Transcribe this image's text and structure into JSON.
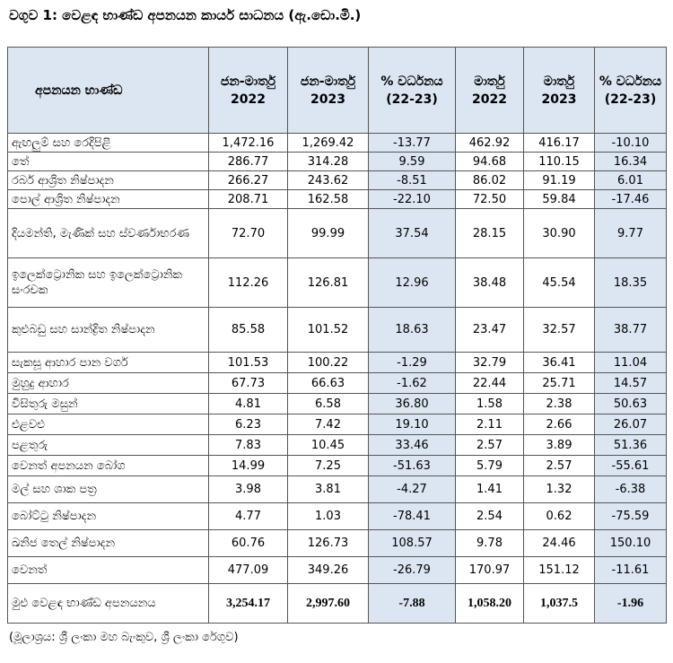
{
  "title": "වගුව 1: වෙළඳ භාණ්ඩ අපනයන කාර්ය සාධනය (ඇ.ඩො.මි.)",
  "table": {
    "header": [
      "අපනයන භාණ්ඩ",
      "ජන-මාර්තු 2022",
      "ජන-මාර්තු 2023",
      "% වර්ධනය (22-23)",
      "මාර්තු 2022",
      "මාර්තු 2023",
      "% වර්ධනය (22-23)"
    ],
    "rows": [
      [
        "ඇඟලුම් සහ රෙදිපිළි",
        "1,472.16",
        "1,269.42",
        "-13.77",
        "462.92",
        "416.17",
        "-10.10"
      ],
      [
        "තේ",
        "286.77",
        "314.28",
        "9.59",
        "94.68",
        "110.15",
        "16.34"
      ],
      [
        "රබර් ආශ්‍රිත නිෂ්පාදන",
        "266.27",
        "243.62",
        "-8.51",
        "86.02",
        "91.19",
        "6.01"
      ],
      [
        "පොල් ආශ්‍රිත නිෂ්පාදන",
        "208.71",
        "162.58",
        "-22.10",
        "72.50",
        "59.84",
        "-17.46"
      ],
      [
        "දියමන්ති, මැණික් සහ ස්වර්ණාභරණ",
        "72.70",
        "99.99",
        "37.54",
        "28.15",
        "30.90",
        "9.77"
      ],
      [
        "ඉලෙක්ට්‍රොනික සහ ඉලෙක්ට්‍රොනික සංරචක",
        "112.26",
        "126.81",
        "12.96",
        "38.48",
        "45.54",
        "18.35"
      ],
      [
        "කුළුබඩු සහ සාන්ද්‍රිත නිෂ්පාදන",
        "85.58",
        "101.52",
        "18.63",
        "23.47",
        "32.57",
        "38.77"
      ],
      [
        "සැකසූ ආහාර පාන වර්ග",
        "101.53",
        "100.22",
        "-1.29",
        "32.79",
        "36.41",
        "11.04"
      ],
      [
        "මුහුදු ආහාර",
        "67.73",
        "66.63",
        "-1.62",
        "22.44",
        "25.71",
        "14.57"
      ],
      [
        "විසිතුරු මසුන්",
        "4.81",
        "6.58",
        "36.80",
        "1.58",
        "2.38",
        "50.63"
      ],
      [
        "එළවළු",
        "6.23",
        "7.42",
        "19.10",
        "2.11",
        "2.66",
        "26.07"
      ],
      [
        "පළතුරු",
        "7.83",
        "10.45",
        "33.46",
        "2.57",
        "3.89",
        "51.36"
      ],
      [
        "වෙනත් අපනයන බෝග",
        "14.99",
        "7.25",
        "-51.63",
        "5.79",
        "2.57",
        "-55.61"
      ],
      [
        "මල් සහ ශාක පත්‍ර",
        "3.98",
        "3.81",
        "-4.27",
        "1.41",
        "1.32",
        "-6.38"
      ],
      [
        "බෝට්ටු නිෂ්පාදන",
        "4.77",
        "1.03",
        "-78.41",
        "2.54",
        "0.62",
        "-75.59"
      ],
      [
        "ඛනිජ තෙල් නිෂ්පාදන",
        "60.76",
        "126.73",
        "108.57",
        "9.78",
        "24.46",
        "150.10"
      ],
      [
        "වෙනත්",
        "477.09",
        "349.26",
        "-26.79",
        "170.97",
        "151.12",
        "-11.61"
      ],
      [
        "මුළු වෙළඳ භාණ්ඩ අපනයනය",
        "3,254.17",
        "2,997.60",
        "-7.88",
        "1,058.20",
        "1,037.5",
        "-1.96"
      ]
    ]
  },
  "source": "(මූලාශ්‍රය: ශ්‍රී ලංකා මහ බැංකුව, ශ්‍රී ලංකා රේගුව)"
}
